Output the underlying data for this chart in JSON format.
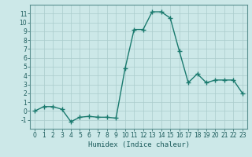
{
  "x": [
    0,
    1,
    2,
    3,
    4,
    5,
    6,
    7,
    8,
    9,
    10,
    11,
    12,
    13,
    14,
    15,
    16,
    17,
    18,
    19,
    20,
    21,
    22,
    23
  ],
  "y": [
    0,
    0.5,
    0.5,
    0.2,
    -1.2,
    -0.7,
    -0.6,
    -0.7,
    -0.7,
    -0.8,
    4.8,
    9.2,
    9.2,
    11.2,
    11.2,
    10.5,
    6.8,
    3.2,
    4.2,
    3.2,
    3.5,
    3.5,
    3.5,
    2.0
  ],
  "line_color": "#1a7a6e",
  "marker": "+",
  "marker_size": 4,
  "bg_color": "#cce8e8",
  "grid_color": "#aacccc",
  "xlabel": "Humidex (Indice chaleur)",
  "ylim": [
    -2,
    12
  ],
  "xlim": [
    -0.5,
    23.5
  ],
  "yticks": [
    -1,
    0,
    1,
    2,
    3,
    4,
    5,
    6,
    7,
    8,
    9,
    10,
    11
  ],
  "xticks": [
    0,
    1,
    2,
    3,
    4,
    5,
    6,
    7,
    8,
    9,
    10,
    11,
    12,
    13,
    14,
    15,
    16,
    17,
    18,
    19,
    20,
    21,
    22,
    23
  ],
  "tick_fontsize": 5.5,
  "xlabel_fontsize": 6.5,
  "line_width": 1.0,
  "marker_color": "#1a7a6e"
}
